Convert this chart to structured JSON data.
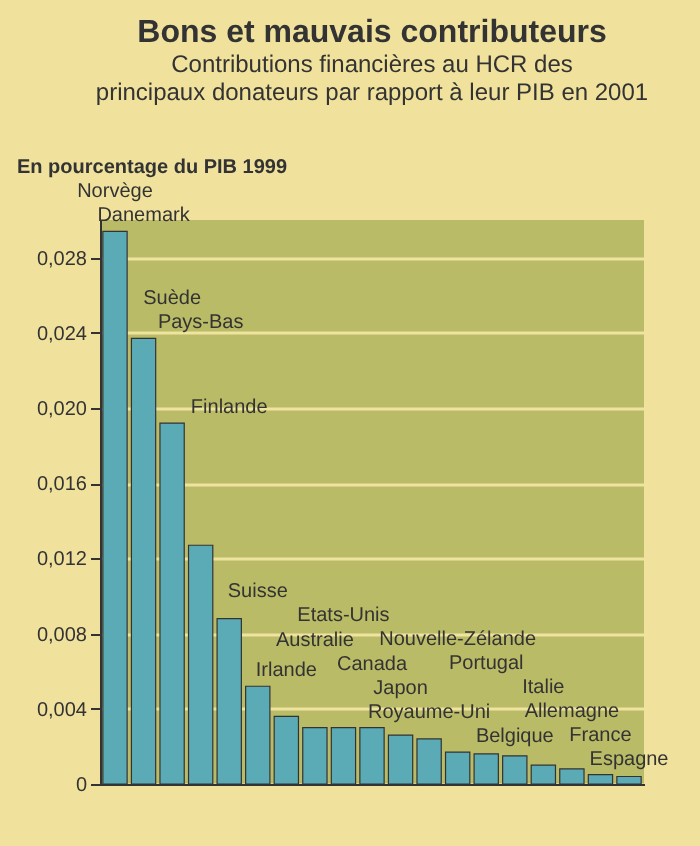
{
  "chart_data": {
    "type": "bar",
    "title": "Bons et mauvais contributeurs",
    "subtitle": "Contributions financières au HCR des principaux donateurs par rapport à leur PIB en 2001",
    "ylabel": "En pourcentage du PIB 1999",
    "categories": [
      "Norvège",
      "Danemark",
      "Suède",
      "Pays-Bas",
      "Finlande",
      "Suisse",
      "Irlande",
      "Australie",
      "Etats-Unis",
      "Canada",
      "Japon",
      "Royaume-Uni",
      "Nouvelle-Zélande",
      "Portugal",
      "Belgique",
      "Italie",
      "Allemagne",
      "France",
      "Espagne"
    ],
    "values": [
      0.0294,
      0.0237,
      0.0192,
      0.0127,
      0.0088,
      0.0052,
      0.0036,
      0.003,
      0.003,
      0.003,
      0.0026,
      0.0024,
      0.0017,
      0.0016,
      0.0015,
      0.001,
      0.0008,
      0.0005,
      0.0004
    ],
    "color": "#5aabb5",
    "ylim": [
      0,
      0.03
    ],
    "yticks": [
      {
        "value": 0,
        "label": "0"
      },
      {
        "value": 0.004,
        "label": "0,004"
      },
      {
        "value": 0.008,
        "label": "0,008"
      },
      {
        "value": 0.012,
        "label": "0,012"
      },
      {
        "value": 0.016,
        "label": "0,016"
      },
      {
        "value": 0.02,
        "label": "0,020"
      },
      {
        "value": 0.024,
        "label": "0,024"
      },
      {
        "value": 0.028,
        "label": "0,028"
      }
    ],
    "grid": "y"
  }
}
